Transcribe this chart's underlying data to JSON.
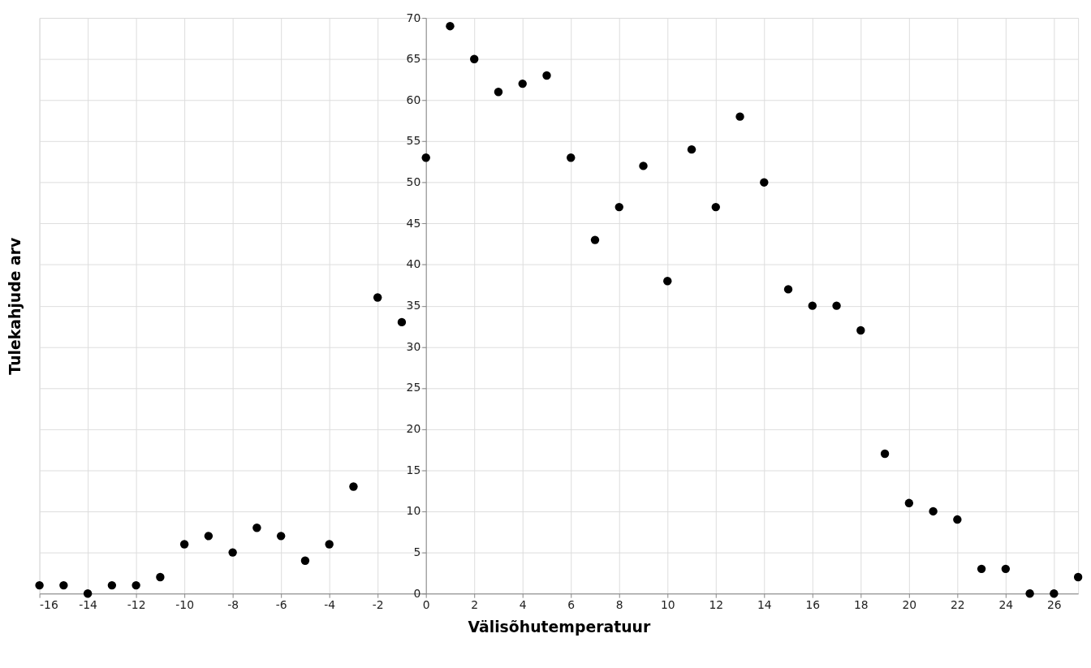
{
  "chart_data": {
    "type": "scatter",
    "xlabel": "Välisõhutemperatuur",
    "ylabel": "Tulekahjude arv",
    "x": [
      -16,
      -15,
      -14,
      -13,
      -12,
      -11,
      -10,
      -9,
      -8,
      -7,
      -6,
      -5,
      -4,
      -3,
      -2,
      -1,
      0,
      1,
      2,
      3,
      4,
      5,
      6,
      7,
      8,
      9,
      10,
      11,
      12,
      13,
      14,
      15,
      16,
      17,
      18,
      19,
      20,
      21,
      22,
      23,
      24,
      25,
      26,
      27
    ],
    "series": [
      {
        "color": "#000000",
        "values": [
          1,
          1,
          0,
          1,
          1,
          2,
          6,
          7,
          5,
          8,
          7,
          4,
          6,
          13,
          36,
          33,
          53,
          69,
          65,
          61,
          62,
          63,
          53,
          43,
          47,
          52,
          38,
          54,
          47,
          58,
          50,
          37,
          35,
          35,
          32,
          17,
          11,
          10,
          9,
          3,
          3,
          0,
          0,
          2
        ]
      }
    ],
    "xlim": [
      -16,
      27
    ],
    "ylim": [
      0,
      70
    ],
    "xticks": [
      -16,
      -14,
      -12,
      -10,
      -8,
      -6,
      -4,
      -2,
      0,
      2,
      4,
      6,
      8,
      10,
      12,
      14,
      16,
      18,
      20,
      22,
      24,
      26
    ],
    "yticks": [
      0,
      5,
      10,
      15,
      20,
      25,
      30,
      35,
      40,
      45,
      50,
      55,
      60,
      65,
      70
    ],
    "grid": true,
    "marker": "circle"
  }
}
